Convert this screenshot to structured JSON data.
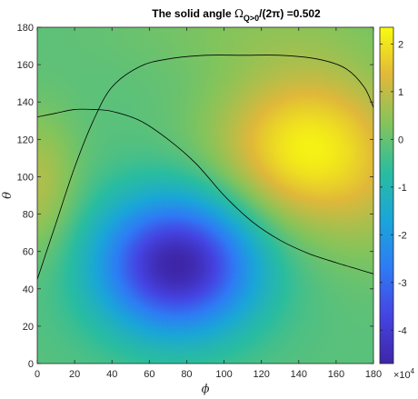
{
  "chart_data": {
    "type": "heatmap",
    "title_prefix": "The solid angle ",
    "title_symbol": "Ω",
    "title_subscript": "Q>0",
    "title_suffix": "/(2π) =0.502",
    "xlabel": "ϕ",
    "ylabel": "θ",
    "xlim": [
      0,
      180
    ],
    "ylim": [
      0,
      180
    ],
    "xticks": [
      "0",
      "20",
      "40",
      "60",
      "80",
      "100",
      "120",
      "140",
      "160",
      "180"
    ],
    "yticks": [
      "0",
      "20",
      "40",
      "60",
      "80",
      "100",
      "120",
      "140",
      "160",
      "180"
    ],
    "colorbar": {
      "range": [
        -4.7,
        2.35
      ],
      "ticks": [
        "2",
        "1",
        "0",
        "-1",
        "-2",
        "-3",
        "-4"
      ],
      "tick_values": [
        2,
        1,
        0,
        -1,
        -2,
        -3,
        -4
      ],
      "exponent_base": "×10",
      "exponent": "4",
      "colormap": "parula"
    },
    "extrema": [
      {
        "label": "maximum",
        "phi": 145,
        "theta": 115,
        "value": 2.35
      },
      {
        "label": "minimum",
        "phi": 75,
        "theta": 53,
        "value": -4.6
      }
    ],
    "zero_contours": [
      {
        "name": "contour-a",
        "points": [
          [
            0,
            45
          ],
          [
            10,
            75
          ],
          [
            20,
            105
          ],
          [
            30,
            130
          ],
          [
            40,
            148
          ],
          [
            55,
            159
          ],
          [
            70,
            163
          ],
          [
            90,
            165
          ],
          [
            110,
            165
          ],
          [
            130,
            165
          ],
          [
            150,
            163
          ],
          [
            165,
            158
          ],
          [
            175,
            148
          ],
          [
            180,
            137
          ]
        ]
      },
      {
        "name": "contour-b",
        "points": [
          [
            0,
            132
          ],
          [
            10,
            134
          ],
          [
            20,
            136
          ],
          [
            30,
            136
          ],
          [
            40,
            135
          ],
          [
            55,
            130
          ],
          [
            70,
            120
          ],
          [
            85,
            107
          ],
          [
            100,
            90
          ],
          [
            115,
            76
          ],
          [
            130,
            66
          ],
          [
            145,
            59
          ],
          [
            160,
            54
          ],
          [
            170,
            51
          ],
          [
            180,
            48
          ]
        ]
      }
    ]
  }
}
